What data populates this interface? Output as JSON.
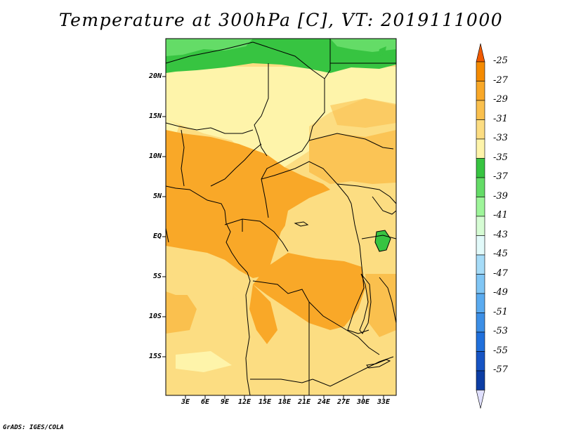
{
  "title": "Temperature at 300hPa [C], VT: 2019111000",
  "credit": "GrADS: IGES/COLA",
  "map": {
    "lat_labels": [
      {
        "label": "20N",
        "lat": 20
      },
      {
        "label": "15N",
        "lat": 15
      },
      {
        "label": "10N",
        "lat": 10
      },
      {
        "label": "5N",
        "lat": 5
      },
      {
        "label": "EQ",
        "lat": 0
      },
      {
        "label": "5S",
        "lat": -5
      },
      {
        "label": "10S",
        "lat": -10
      },
      {
        "label": "15S",
        "lat": -15
      }
    ],
    "lon_labels": [
      {
        "label": "3E",
        "lon": 3
      },
      {
        "label": "6E",
        "lon": 6
      },
      {
        "label": "9E",
        "lon": 9
      },
      {
        "label": "12E",
        "lon": 12
      },
      {
        "label": "15E",
        "lon": 15
      },
      {
        "label": "18E",
        "lon": 18
      },
      {
        "label": "21E",
        "lon": 21
      },
      {
        "label": "24E",
        "lon": 24
      },
      {
        "label": "27E",
        "lon": 27
      },
      {
        "label": "30E",
        "lon": 30
      },
      {
        "label": "33E",
        "lon": 33
      }
    ]
  },
  "colorbar": {
    "labels": [
      "-25",
      "-27",
      "-29",
      "-31",
      "-33",
      "-35",
      "-37",
      "-39",
      "-41",
      "-43",
      "-45",
      "-47",
      "-49",
      "-51",
      "-53",
      "-55",
      "-57"
    ],
    "colors": [
      "#f05a00",
      "#f58b00",
      "#f9a828",
      "#fac04e",
      "#fcdd82",
      "#fef4aa",
      "#37c441",
      "#64dc67",
      "#9ef59a",
      "#d6fcd4",
      "#e2fafa",
      "#a6dcf8",
      "#80c6f5",
      "#5aabf0",
      "#3c8fe6",
      "#2070dc",
      "#1654c4",
      "#0c3da4",
      "#0a1e78"
    ]
  }
}
